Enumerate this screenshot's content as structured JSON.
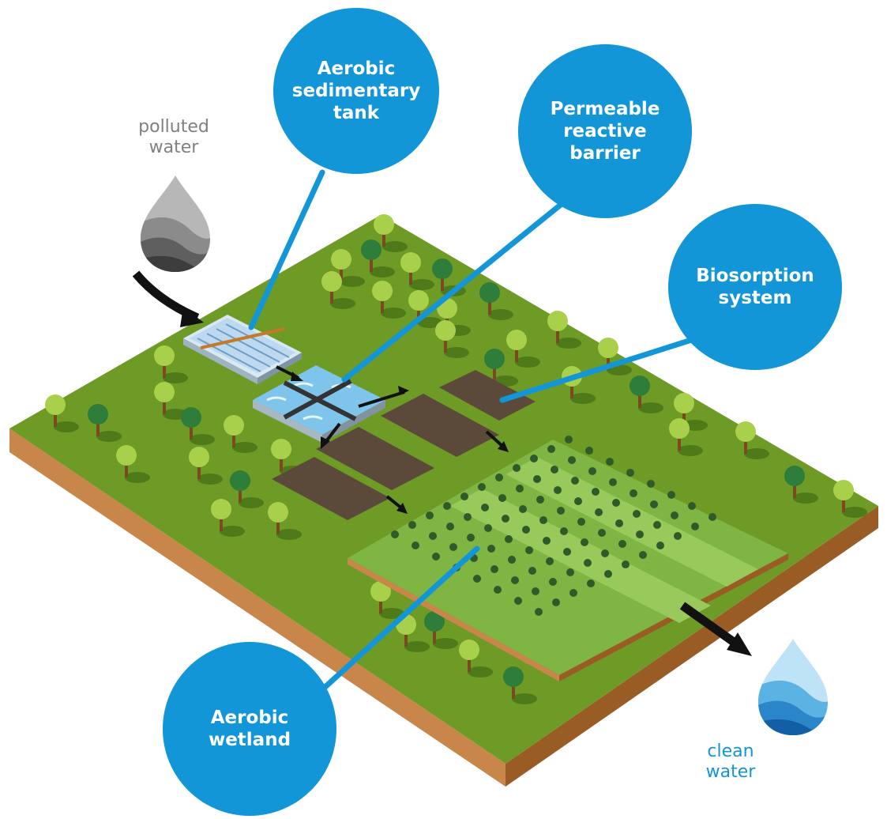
{
  "colors": {
    "bubble": "#1296d7",
    "bubble_text": "#ffffff",
    "ground_top": "#6e9a26",
    "ground_side_left": "#c8864a",
    "ground_side_right": "#9a5c25",
    "wetland": "#7fb542",
    "wetland_path": "#98c95a",
    "soil_bed": "#5b4a3a",
    "tree_light": "#a9d04a",
    "tree_dark": "#2e7d3a",
    "arrow": "#111111",
    "polluted_label": "#808080",
    "clean_label": "#1296d7"
  },
  "callouts": [
    {
      "id": "aerobic-sedimentary-tank",
      "lines": [
        "Aerobic",
        "sedimentary",
        "tank"
      ]
    },
    {
      "id": "permeable-reactive-barrier",
      "lines": [
        "Permeable",
        "reactive",
        "barrier"
      ]
    },
    {
      "id": "biosorption-system",
      "lines": [
        "Biosorption",
        "system"
      ]
    },
    {
      "id": "aerobic-wetland",
      "lines": [
        "Aerobic",
        "wetland"
      ]
    }
  ],
  "inputs": {
    "polluted_water": {
      "lines": [
        "polluted",
        "water"
      ],
      "icon": "gray-water-drop-icon"
    },
    "clean_water": {
      "lines": [
        "clean",
        "water"
      ],
      "icon": "blue-water-drop-icon"
    }
  }
}
